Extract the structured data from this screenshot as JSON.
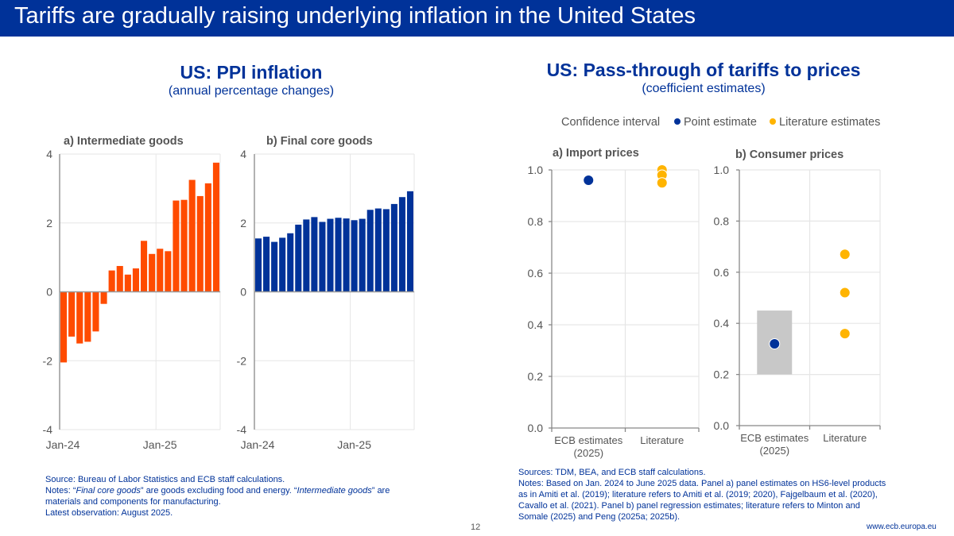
{
  "header": {
    "title": "Tariffs are gradually raising underlying inflation in the United States"
  },
  "left": {
    "title": "US: PPI inflation",
    "subtitle": "(annual percentage changes)",
    "source": "Source: Bureau of Labor Statistics and ECB staff calculations.",
    "notes_prefix": "Notes: “",
    "notes_em1": "Final core goods",
    "notes_mid": "” are goods excluding food and energy. “",
    "notes_em2": "Intermediate goods",
    "notes_suffix": "” are materials and components for manufacturing.",
    "latest": "Latest observation: August 2025."
  },
  "right": {
    "title": "US: Pass-through of tariffs to prices",
    "subtitle": "(coefficient estimates)",
    "legend": [
      {
        "label": "Confidence interval",
        "color": "#c8c8c8",
        "marker": "none"
      },
      {
        "label": "Point estimate",
        "color": "#003299",
        "marker": "dot"
      },
      {
        "label": "Literature estimates",
        "color": "#ffb400",
        "marker": "dot"
      }
    ],
    "source": "Sources: TDM, BEA, and ECB staff calculations.",
    "notes": "Notes: Based on Jan. 2024 to June 2025 data. Panel a) panel estimates on HS6-level products as in Amiti et al. (2019); literature refers to Amiti et al. (2019; 2020), Fajgelbaum et al. (2020), Cavallo et al. (2021). Panel b) panel regression estimates; literature refers to Minton and Somale (2025) and Peng (2025a; 2025b)."
  },
  "footer": {
    "page": "12",
    "url": "www.ecb.europa.eu"
  },
  "chart_data": [
    {
      "type": "bar",
      "title": "a) Intermediate goods",
      "color": "#ff4b00",
      "categories": [
        "Jan-24",
        "Feb-24",
        "Mar-24",
        "Apr-24",
        "May-24",
        "Jun-24",
        "Jul-24",
        "Aug-24",
        "Sep-24",
        "Oct-24",
        "Nov-24",
        "Dec-24",
        "Jan-25",
        "Feb-25",
        "Mar-25",
        "Apr-25",
        "May-25",
        "Jun-25",
        "Jul-25",
        "Aug-25"
      ],
      "values": [
        -2.05,
        -1.3,
        -1.5,
        -1.45,
        -1.15,
        -0.35,
        0.62,
        0.75,
        0.5,
        0.68,
        1.48,
        1.1,
        1.25,
        1.18,
        2.65,
        2.67,
        3.25,
        2.78,
        3.15,
        3.75
      ],
      "xticks": [
        "Jan-24",
        "Jan-25"
      ],
      "yticks": [
        "4",
        "2",
        "0",
        "-2",
        "-4"
      ],
      "ylim": [
        -4,
        4
      ],
      "grid": true
    },
    {
      "type": "bar",
      "title": "b) Final core goods",
      "color": "#003299",
      "categories": [
        "Jan-24",
        "Feb-24",
        "Mar-24",
        "Apr-24",
        "May-24",
        "Jun-24",
        "Jul-24",
        "Aug-24",
        "Sep-24",
        "Oct-24",
        "Nov-24",
        "Dec-24",
        "Jan-25",
        "Feb-25",
        "Mar-25",
        "Apr-25",
        "May-25",
        "Jun-25",
        "Jul-25",
        "Aug-25"
      ],
      "values": [
        1.55,
        1.6,
        1.45,
        1.57,
        1.7,
        1.95,
        2.1,
        2.17,
        2.03,
        2.12,
        2.15,
        2.13,
        2.08,
        2.12,
        2.38,
        2.42,
        2.4,
        2.55,
        2.75,
        2.92
      ],
      "xticks": [
        "Jan-24",
        "Jan-25"
      ],
      "yticks": [
        "4",
        "2",
        "0",
        "-2",
        "-4"
      ],
      "ylim": [
        -4,
        4
      ],
      "grid": true
    },
    {
      "type": "scatter",
      "title": "a) Import prices",
      "categories": [
        "ECB estimates (2025)",
        "Literature"
      ],
      "category_lines": [
        [
          "ECB estimates",
          "(2025)"
        ],
        [
          "Literature"
        ]
      ],
      "point_estimate": {
        "category": 0,
        "value": 0.96
      },
      "confidence_interval": null,
      "literature": {
        "category": 1,
        "values": [
          1.0,
          0.98,
          0.95
        ]
      },
      "yticks": [
        "1.0",
        "0.8",
        "0.6",
        "0.4",
        "0.2",
        "0.0"
      ],
      "ylim": [
        0,
        1
      ],
      "grid": true
    },
    {
      "type": "scatter",
      "title": "b) Consumer prices",
      "categories": [
        "ECB estimates (2025)",
        "Literature"
      ],
      "category_lines": [
        [
          "ECB estimates",
          "(2025)"
        ],
        [
          "Literature"
        ]
      ],
      "point_estimate": {
        "category": 0,
        "value": 0.32
      },
      "confidence_interval": {
        "category": 0,
        "low": 0.2,
        "high": 0.45
      },
      "literature": {
        "category": 1,
        "values": [
          0.67,
          0.52,
          0.36
        ]
      },
      "yticks": [
        "1.0",
        "0.8",
        "0.6",
        "0.4",
        "0.2",
        "0.0"
      ],
      "ylim": [
        0,
        1
      ],
      "grid": true
    }
  ]
}
